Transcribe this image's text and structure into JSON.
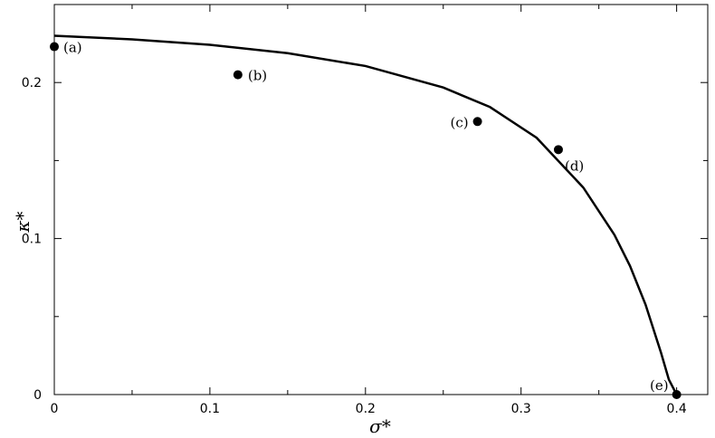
{
  "chart_data": {
    "type": "scatter",
    "title": "",
    "xlabel": "σ*",
    "ylabel": "κ*",
    "xlim": [
      0,
      0.42
    ],
    "ylim": [
      0,
      0.25
    ],
    "xticks": [
      0,
      0.1,
      0.2,
      0.3,
      0.4
    ],
    "xtick_labels": [
      "0",
      "0.1",
      "0.2",
      "0.3",
      "0.4"
    ],
    "yticks": [
      0,
      0.1,
      0.2
    ],
    "ytick_labels": [
      "0",
      "0.1",
      "0.2"
    ],
    "grid": false,
    "series": [
      {
        "type": "line",
        "x": [
          0,
          0.05,
          0.1,
          0.15,
          0.2,
          0.25,
          0.28,
          0.31,
          0.34,
          0.36,
          0.37,
          0.38,
          0.39,
          0.395,
          0.4
        ],
        "y": [
          0.23,
          0.2277,
          0.2242,
          0.2188,
          0.2106,
          0.1968,
          0.1843,
          0.1646,
          0.1327,
          0.1024,
          0.0825,
          0.0577,
          0.0267,
          0.0096,
          0
        ]
      },
      {
        "type": "scatter",
        "points": [
          {
            "x": 0.0,
            "y": 0.223,
            "label": "(a)"
          },
          {
            "x": 0.118,
            "y": 0.205,
            "label": "(b)"
          },
          {
            "x": 0.272,
            "y": 0.175,
            "label": "(c)"
          },
          {
            "x": 0.324,
            "y": 0.157,
            "label": "(d)"
          },
          {
            "x": 0.4,
            "y": 0.0,
            "label": "(e)"
          }
        ]
      }
    ]
  }
}
